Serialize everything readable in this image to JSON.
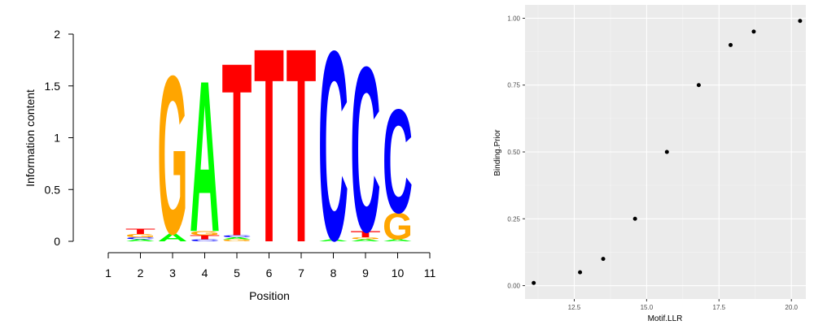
{
  "chart_data": [
    {
      "type": "sequence-logo",
      "xlabel": "Position",
      "ylabel": "Information content",
      "ylim": [
        0,
        2
      ],
      "yticks": [
        "0",
        "0.5",
        "1",
        "1.5",
        "2"
      ],
      "xticks": [
        "1",
        "2",
        "3",
        "4",
        "5",
        "6",
        "7",
        "8",
        "9",
        "10",
        "11"
      ],
      "colors": {
        "A": "#00ff00",
        "C": "#0000ff",
        "G": "#ffa500",
        "T": "#ff0000"
      },
      "positions": [
        {
          "position": 2,
          "stack": [
            {
              "letter": "A",
              "height": 0.02
            },
            {
              "letter": "C",
              "height": 0.02
            },
            {
              "letter": "G",
              "height": 0.03
            },
            {
              "letter": "T",
              "height": 0.05
            }
          ]
        },
        {
          "position": 3,
          "stack": [
            {
              "letter": "A",
              "height": 0.08
            },
            {
              "letter": "G",
              "height": 1.57
            }
          ]
        },
        {
          "position": 4,
          "stack": [
            {
              "letter": "C",
              "height": 0.02
            },
            {
              "letter": "T",
              "height": 0.04
            },
            {
              "letter": "G",
              "height": 0.04
            },
            {
              "letter": "A",
              "height": 1.5
            }
          ]
        },
        {
          "position": 5,
          "stack": [
            {
              "letter": "G",
              "height": 0.02
            },
            {
              "letter": "A",
              "height": 0.02
            },
            {
              "letter": "C",
              "height": 0.02
            },
            {
              "letter": "T",
              "height": 1.72
            }
          ]
        },
        {
          "position": 6,
          "stack": [
            {
              "letter": "T",
              "height": 1.93
            }
          ]
        },
        {
          "position": 7,
          "stack": [
            {
              "letter": "T",
              "height": 1.93
            }
          ]
        },
        {
          "position": 8,
          "stack": [
            {
              "letter": "A",
              "height": 0.02
            },
            {
              "letter": "C",
              "height": 1.88
            }
          ]
        },
        {
          "position": 9,
          "stack": [
            {
              "letter": "A",
              "height": 0.02
            },
            {
              "letter": "G",
              "height": 0.02
            },
            {
              "letter": "T",
              "height": 0.06
            },
            {
              "letter": "C",
              "height": 1.64
            }
          ]
        },
        {
          "position": 10,
          "stack": [
            {
              "letter": "A",
              "height": 0.02
            },
            {
              "letter": "G",
              "height": 0.26
            },
            {
              "letter": "C",
              "height": 1.03
            }
          ]
        }
      ]
    },
    {
      "type": "scatter",
      "xlabel": "Motif.LLR",
      "ylabel": "Binding.Prior",
      "xlim": [
        10.8,
        20.5
      ],
      "ylim": [
        -0.05,
        1.05
      ],
      "xticks": [
        "12.5",
        "15.0",
        "17.5",
        "20.0"
      ],
      "yticks": [
        "0.00",
        "0.25",
        "0.50",
        "0.75",
        "1.00"
      ],
      "grid": true,
      "background": "#ebebeb",
      "points": [
        {
          "x": 11.1,
          "y": 0.01
        },
        {
          "x": 12.7,
          "y": 0.05
        },
        {
          "x": 13.5,
          "y": 0.1
        },
        {
          "x": 14.6,
          "y": 0.25
        },
        {
          "x": 15.7,
          "y": 0.5
        },
        {
          "x": 16.8,
          "y": 0.75
        },
        {
          "x": 17.9,
          "y": 0.9
        },
        {
          "x": 18.7,
          "y": 0.95
        },
        {
          "x": 20.3,
          "y": 0.99
        }
      ]
    }
  ]
}
